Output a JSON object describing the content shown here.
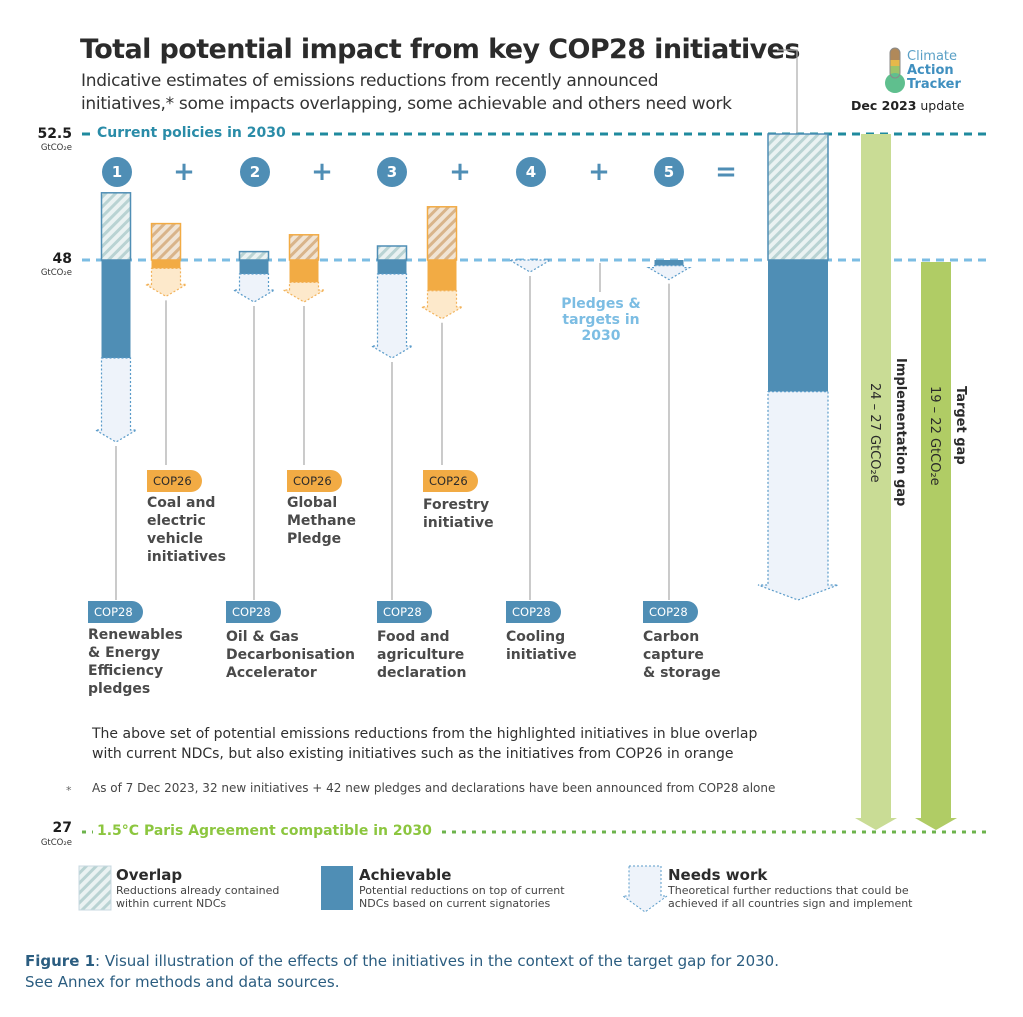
{
  "header": {
    "title": "Total potential impact from key COP28 initiatives",
    "subtitle_line1": "Indicative estimates of emissions reductions from recently announced",
    "subtitle_line2": "initiatives,* some impacts overlapping, some achievable and others need work",
    "logo": {
      "line1": "Climate",
      "line2": "Action",
      "line3": "Tracker",
      "icon": "thermometer-icon"
    },
    "update_bold": "Dec 2023",
    "update_rest": " update"
  },
  "chart_data": {
    "type": "bar",
    "title": "Total potential impact from key COP28 initiatives",
    "unit": "GtCO₂e",
    "reference_lines": [
      {
        "value": 52.5,
        "label": "Current policies in 2030",
        "color": "#1f8a9e",
        "unit": "GtCO₂e"
      },
      {
        "value": 48,
        "label": "Pledges & targets in 2030",
        "color": "#7cbde3",
        "unit": "GtCO₂e"
      },
      {
        "value": 27,
        "label": "1.5°C Paris Agreement compatible in 2030",
        "color": "#8cc63f",
        "unit": "GtCO₂e"
      }
    ],
    "operators": [
      "+",
      "+",
      "+",
      "+",
      "="
    ],
    "initiatives": [
      {
        "number": "1",
        "tag": "COP28",
        "label": [
          "Renewables",
          "& Energy",
          "Efficiency",
          "pledges"
        ],
        "color": "blue",
        "segments": {
          "overlap": 2.4,
          "achievable": 3.5,
          "needs_work": 3.0
        }
      },
      {
        "tag": "COP26",
        "label": [
          "Coal and",
          "electric",
          "vehicle",
          "initiatives"
        ],
        "color": "orange",
        "segments": {
          "overlap": 1.3,
          "achievable": 0.3,
          "needs_work": 1.0
        }
      },
      {
        "number": "2",
        "tag": "COP28",
        "label": [
          "Oil & Gas",
          "Decarbonisation",
          "Accelerator"
        ],
        "color": "blue",
        "segments": {
          "overlap": 0.3,
          "achievable": 0.5,
          "needs_work": 1.0
        }
      },
      {
        "tag": "COP26",
        "label": [
          "Global",
          "Methane",
          "Pledge"
        ],
        "color": "orange",
        "segments": {
          "overlap": 0.9,
          "achievable": 0.8,
          "needs_work": 0.7
        }
      },
      {
        "number": "3",
        "tag": "COP28",
        "label": [
          "Food and",
          "agriculture",
          "declaration"
        ],
        "color": "blue",
        "segments": {
          "overlap": 0.5,
          "achievable": 0.5,
          "needs_work": 3.0
        }
      },
      {
        "tag": "COP26",
        "label": [
          "Forestry",
          "initiative"
        ],
        "color": "orange",
        "segments": {
          "overlap": 1.9,
          "achievable": 1.1,
          "needs_work": 1.0
        }
      },
      {
        "number": "4",
        "tag": "COP28",
        "label": [
          "Cooling",
          "initiative"
        ],
        "color": "blue",
        "segments": {
          "overlap": 0,
          "achievable": 0,
          "needs_work": 0.4
        }
      },
      {
        "number": "5",
        "tag": "COP28",
        "label": [
          "Carbon",
          "capture",
          "& storage"
        ],
        "color": "blue",
        "segments": {
          "overlap": 0,
          "achievable": 0.2,
          "needs_work": 0.5
        }
      }
    ],
    "total": {
      "segments": {
        "overlap": 3.4,
        "achievable": 4.7,
        "needs_work": 7.5
      }
    },
    "gaps": [
      {
        "name": "Implementation gap",
        "range": "24 – 27 GtCO₂e",
        "from": 52.5,
        "to": 27,
        "color": "#c9dc95"
      },
      {
        "name": "Target gap",
        "range": "19 – 22 GtCO₂e",
        "from": 48,
        "to": 27,
        "color": "#b0cc65"
      }
    ],
    "legend": [
      {
        "key": "overlap",
        "title": "Overlap",
        "desc": [
          "Reductions already contained",
          "within current NDCs"
        ]
      },
      {
        "key": "achievable",
        "title": "Achievable",
        "desc": [
          "Potential reductions on top of current",
          "NDCs based on current signatories"
        ]
      },
      {
        "key": "needs_work",
        "title": "Needs work",
        "desc": [
          "Theoretical further reductions that could be",
          "achieved if all countries sign and implement"
        ]
      }
    ],
    "colors": {
      "blue": "#4f8eb5",
      "orange": "#f2ab44",
      "blue_light": "#eef3fa",
      "orange_light": "#fde9cb",
      "hatch_blue": "#b9d3d3",
      "hatch_orange": "#d9b48a"
    }
  },
  "notes": {
    "main_line1": "The above set of potential emissions reductions from the highlighted initiatives in blue overlap",
    "main_line2": "with current NDCs, but also existing initiatives such as the initiatives from COP26 in orange",
    "footnote_star": "*",
    "footnote": "As of 7 Dec 2023, 32 new initiatives + 42 new pledges and declarations have been announced from COP28 alone"
  },
  "caption": {
    "bold": "Figure 1",
    "rest": ": Visual illustration of the effects of the initiatives in the context of the target gap for 2030.",
    "line2": "See Annex for methods and data sources."
  }
}
